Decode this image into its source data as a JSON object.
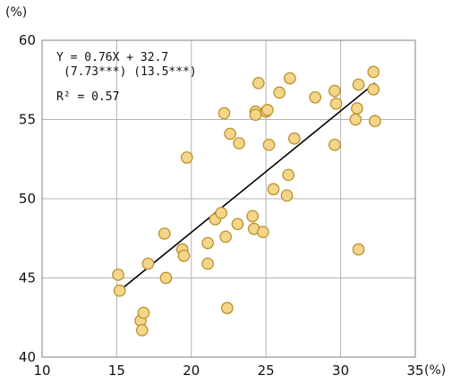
{
  "chart_data": {
    "type": "scatter",
    "title": "",
    "xlabel": "(%)",
    "ylabel": "(%)",
    "xlim": [
      10,
      35
    ],
    "ylim": [
      40,
      60
    ],
    "x_ticks": [
      "10",
      "15",
      "20",
      "25",
      "30",
      "35"
    ],
    "y_ticks": [
      "40",
      "45",
      "50",
      "55",
      "60"
    ],
    "grid": true,
    "annotations": [
      "Y = 0.76X + 32.7",
      "(7.73***) (13.5***)",
      "R² = 0.57"
    ],
    "regression_line": {
      "x": [
        15.2,
        32.3
      ],
      "y": [
        44.2,
        57.3
      ]
    },
    "points": [
      {
        "x": 15.1,
        "y": 45.2
      },
      {
        "x": 15.2,
        "y": 44.2
      },
      {
        "x": 16.6,
        "y": 42.3
      },
      {
        "x": 16.7,
        "y": 41.7
      },
      {
        "x": 16.8,
        "y": 42.8
      },
      {
        "x": 17.1,
        "y": 45.9
      },
      {
        "x": 18.2,
        "y": 47.8
      },
      {
        "x": 18.3,
        "y": 45.0
      },
      {
        "x": 19.4,
        "y": 46.8
      },
      {
        "x": 19.5,
        "y": 46.4
      },
      {
        "x": 19.7,
        "y": 52.6
      },
      {
        "x": 21.1,
        "y": 47.2
      },
      {
        "x": 21.1,
        "y": 45.9
      },
      {
        "x": 21.6,
        "y": 48.7
      },
      {
        "x": 22.0,
        "y": 49.1
      },
      {
        "x": 22.2,
        "y": 55.4
      },
      {
        "x": 22.3,
        "y": 47.6
      },
      {
        "x": 22.4,
        "y": 43.1
      },
      {
        "x": 22.6,
        "y": 54.1
      },
      {
        "x": 23.1,
        "y": 48.4
      },
      {
        "x": 23.2,
        "y": 53.5
      },
      {
        "x": 24.1,
        "y": 48.9
      },
      {
        "x": 24.2,
        "y": 48.1
      },
      {
        "x": 24.3,
        "y": 55.5
      },
      {
        "x": 24.3,
        "y": 55.3
      },
      {
        "x": 24.5,
        "y": 57.3
      },
      {
        "x": 24.8,
        "y": 47.9
      },
      {
        "x": 25.0,
        "y": 55.5
      },
      {
        "x": 25.1,
        "y": 55.6
      },
      {
        "x": 25.2,
        "y": 53.4
      },
      {
        "x": 25.5,
        "y": 50.6
      },
      {
        "x": 25.9,
        "y": 56.7
      },
      {
        "x": 26.4,
        "y": 50.2
      },
      {
        "x": 26.5,
        "y": 51.5
      },
      {
        "x": 26.6,
        "y": 57.6
      },
      {
        "x": 26.9,
        "y": 53.8
      },
      {
        "x": 28.3,
        "y": 56.4
      },
      {
        "x": 29.6,
        "y": 56.8
      },
      {
        "x": 29.6,
        "y": 53.4
      },
      {
        "x": 29.7,
        "y": 56.0
      },
      {
        "x": 31.0,
        "y": 55.0
      },
      {
        "x": 31.1,
        "y": 55.7
      },
      {
        "x": 31.2,
        "y": 57.2
      },
      {
        "x": 31.2,
        "y": 46.8
      },
      {
        "x": 32.2,
        "y": 58.0
      },
      {
        "x": 32.2,
        "y": 56.9
      },
      {
        "x": 32.3,
        "y": 54.9
      }
    ],
    "colors": {
      "marker_fill": "#f5d58a",
      "marker_stroke": "#b8922a",
      "line": "#000000",
      "grid": "#b3b3b3"
    }
  }
}
